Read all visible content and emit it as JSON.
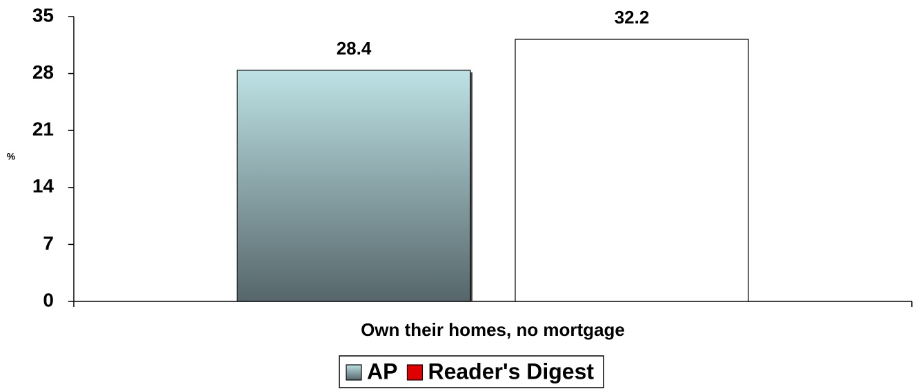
{
  "chart_data": {
    "type": "bar",
    "y_label": "%",
    "categories": [
      "Own their homes, no mortgage"
    ],
    "series": [
      {
        "name": "AP",
        "color": "#56666a",
        "gradient": [
          "#bde2e5",
          "#56666a"
        ],
        "values": [
          28.4
        ]
      },
      {
        "name": "Reader's Digest",
        "color": "#e00000",
        "fill": "#ffffff",
        "values": [
          32.2
        ]
      }
    ],
    "ylim": [
      0,
      35
    ],
    "yticks": [
      0,
      7,
      14,
      21,
      28,
      35
    ],
    "legend": "bottom"
  }
}
